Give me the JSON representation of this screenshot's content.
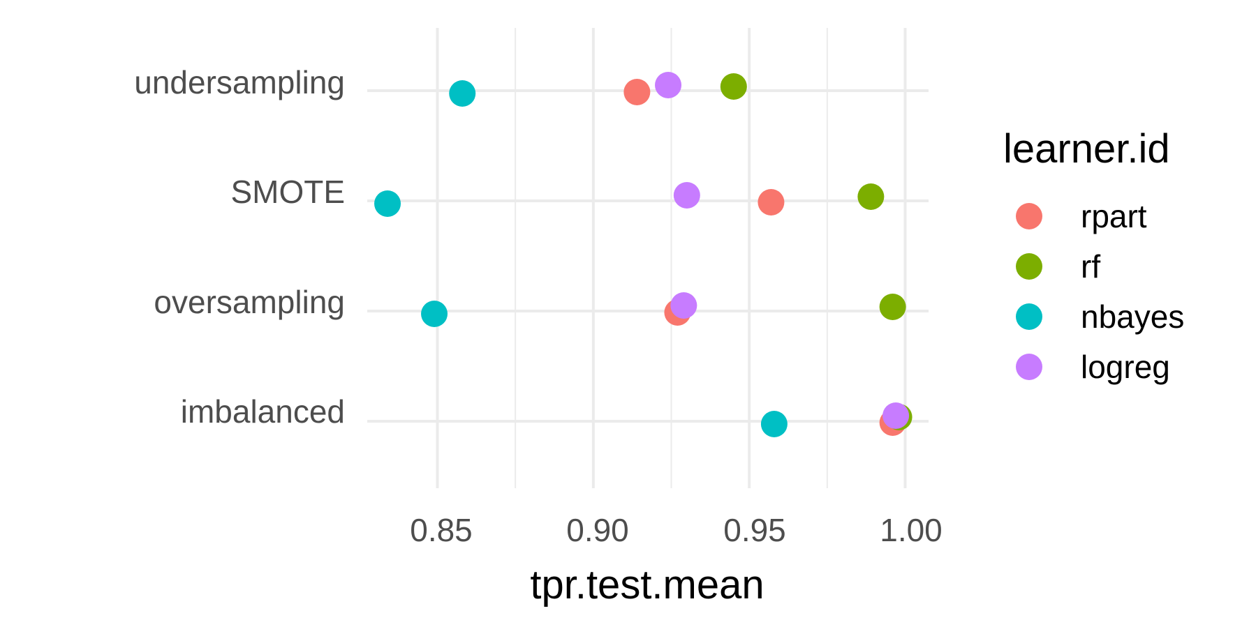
{
  "chart_data": {
    "type": "scatter",
    "title": "",
    "xlabel": "tpr.test.mean",
    "ylabel": "",
    "xlim": [
      0.8275,
      1.0075
    ],
    "x_ticks": [
      "0.85",
      "0.90",
      "0.95",
      "1.00"
    ],
    "x_tick_values": [
      0.85,
      0.9,
      0.95,
      1.0
    ],
    "x_minor_values": [
      0.875,
      0.925,
      0.975
    ],
    "categories": [
      "undersampling",
      "SMOTE",
      "oversampling",
      "imbalanced"
    ],
    "grid": true,
    "legend": {
      "title": "learner.id",
      "position": "right"
    },
    "series": [
      {
        "name": "rpart",
        "color": "#F8766D",
        "values": [
          0.914,
          0.957,
          0.927,
          0.996
        ]
      },
      {
        "name": "rf",
        "color": "#7CAE00",
        "values": [
          0.945,
          0.989,
          0.996,
          0.998
        ]
      },
      {
        "name": "nbayes",
        "color": "#00BFC4",
        "values": [
          0.858,
          0.834,
          0.849,
          0.958
        ]
      },
      {
        "name": "logreg",
        "color": "#C77CFF",
        "values": [
          0.924,
          0.93,
          0.929,
          0.997
        ]
      }
    ]
  }
}
